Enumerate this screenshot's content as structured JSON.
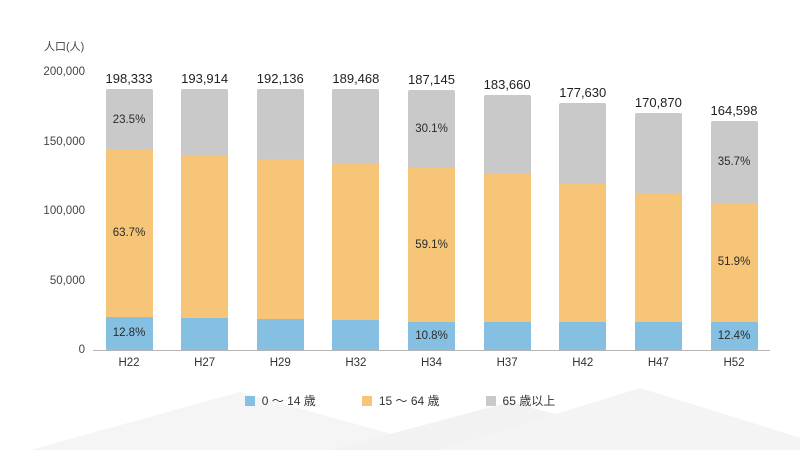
{
  "chart": {
    "y_axis_label": "人口(人)",
    "y_ticks": [
      "200,000",
      "150,000",
      "100,000",
      "50,000",
      "0"
    ],
    "legend": [
      {
        "label": "0 ～ 14 歳",
        "color": "#85bfe2"
      },
      {
        "label": "15 ～ 64 歳",
        "color": "#f6c577"
      },
      {
        "label": "65 歳以上",
        "color": "#c9c9c9"
      }
    ]
  },
  "chart_data": {
    "type": "bar",
    "stacked": true,
    "title": "",
    "xlabel": "",
    "ylabel": "人口(人)",
    "ylim": [
      0,
      200000
    ],
    "categories": [
      "H22",
      "H27",
      "H29",
      "H32",
      "H34",
      "H37",
      "H42",
      "H47",
      "H52"
    ],
    "totals": [
      198333,
      193914,
      192136,
      189468,
      187145,
      183660,
      177630,
      170870,
      164598
    ],
    "total_labels": [
      "198,333",
      "193,914",
      "192,136",
      "189,468",
      "187,145",
      "183,660",
      "177,630",
      "170,870",
      "164,598"
    ],
    "series": [
      {
        "name": "0～14歳",
        "color": "#85bfe2",
        "pct": [
          12.8,
          12.2,
          12.0,
          11.4,
          10.8,
          11.0,
          11.2,
          11.6,
          12.4
        ]
      },
      {
        "name": "15～64歳",
        "color": "#f6c577",
        "pct": [
          63.7,
          62.2,
          61.2,
          60.2,
          59.1,
          57.8,
          56.0,
          54.0,
          51.9
        ]
      },
      {
        "name": "65歳以上",
        "color": "#c9c9c9",
        "pct": [
          23.5,
          25.6,
          26.8,
          28.4,
          30.1,
          31.2,
          32.8,
          34.4,
          35.7
        ]
      }
    ],
    "segment_labels": [
      {
        "category_index": 0,
        "labels": [
          "12.8%",
          "63.7%",
          "23.5%"
        ]
      },
      {
        "category_index": 4,
        "labels": [
          "10.8%",
          "59.1%",
          "30.1%"
        ]
      },
      {
        "category_index": 8,
        "labels": [
          "12.4%",
          "51.9%",
          "35.7%"
        ]
      }
    ],
    "legend_position": "bottom",
    "grid": false
  }
}
